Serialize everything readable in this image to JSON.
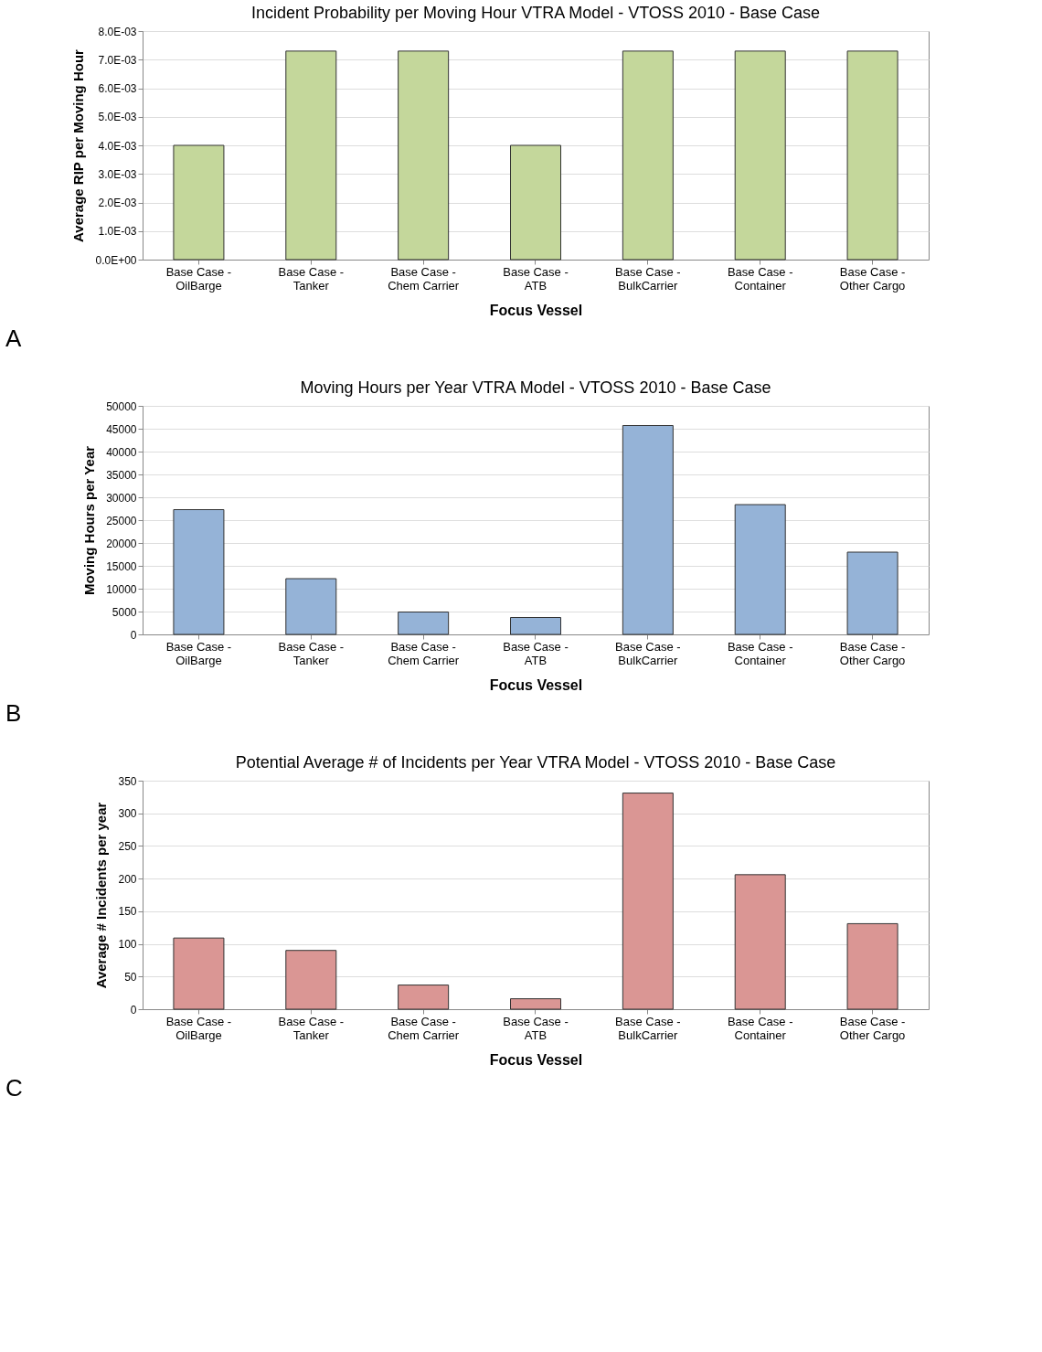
{
  "chart_data": [
    {
      "type": "bar",
      "title": "Incident Probability per Moving Hour VTRA Model - VTOSS 2010 - Base Case",
      "xlabel": "Focus Vessel",
      "ylabel": "Average RIP per Moving Hour",
      "categories": [
        "Base Case -\nOilBarge",
        "Base Case -\nTanker",
        "Base Case -\nChem Carrier",
        "Base  Case -\nATB",
        "Base Case -\nBulkCarrier",
        "Base Case -\nContainer",
        "Base Case -\nOther Cargo"
      ],
      "values": [
        0.004,
        0.0073,
        0.0073,
        0.004,
        0.0073,
        0.0073,
        0.0073
      ],
      "color": "#c4d79b",
      "ylim": [
        0,
        0.008
      ],
      "yticks": [
        {
          "value": 0,
          "label": "0.0E+00"
        },
        {
          "value": 0.001,
          "label": "1.0E-03"
        },
        {
          "value": 0.002,
          "label": "2.0E-03"
        },
        {
          "value": 0.003,
          "label": "3.0E-03"
        },
        {
          "value": 0.004,
          "label": "4.0E-03"
        },
        {
          "value": 0.005,
          "label": "5.0E-03"
        },
        {
          "value": 0.006,
          "label": "6.0E-03"
        },
        {
          "value": 0.007,
          "label": "7.0E-03"
        },
        {
          "value": 0.008,
          "label": "8.0E-03"
        }
      ],
      "grid": "y",
      "annotations": [
        "A"
      ]
    },
    {
      "type": "bar",
      "title": "Moving Hours per Year VTRA Model - VTOSS 2010 - Base Case",
      "xlabel": "Focus Vessel",
      "ylabel": "Moving Hours per Year",
      "categories": [
        "Base Case -\nOilBarge",
        "Base Case -\nTanker",
        "Base Case -\nChem Carrier",
        "Base  Case -\nATB",
        "Base Case -\nBulkCarrier",
        "Base Case -\nContainer",
        "Base Case -\nOther Cargo"
      ],
      "values": [
        27300,
        12200,
        4900,
        3700,
        45700,
        28400,
        18000
      ],
      "color": "#95b3d7",
      "ylim": [
        0,
        50000
      ],
      "yticks": [
        0,
        5000,
        10000,
        15000,
        20000,
        25000,
        30000,
        35000,
        40000,
        45000,
        50000
      ],
      "grid": "y",
      "annotations": [
        "B"
      ]
    },
    {
      "type": "bar",
      "title": "Potential Average # of Incidents per Year VTRA Model - VTOSS 2010 - Base Case",
      "xlabel": "Focus Vessel",
      "ylabel": "Average # Incidents per year",
      "categories": [
        "Base Case -\nOilBarge",
        "Base Case -\nTanker",
        "Base Case -\nChem Carrier",
        "Base  Case -\nATB",
        "Base Case -\nBulkCarrier",
        "Base Case -\nContainer",
        "Base Case -\nOther Cargo"
      ],
      "values": [
        109,
        90,
        37,
        16,
        331,
        206,
        131
      ],
      "color": "#da9694",
      "ylim": [
        0,
        350
      ],
      "yticks": [
        0,
        50,
        100,
        150,
        200,
        250,
        300,
        350
      ],
      "grid": "y",
      "annotations": [
        "C"
      ]
    }
  ]
}
